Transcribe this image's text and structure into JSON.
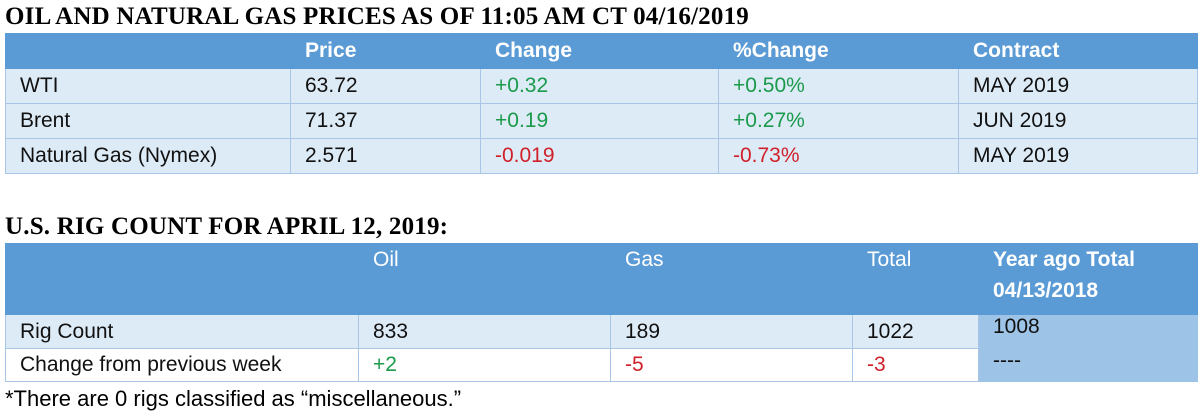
{
  "prices": {
    "title": "OIL AND NATURAL GAS PRICES AS OF 11:05 AM CT 04/16/2019",
    "headers": [
      "",
      "Price",
      "Change",
      "%Change",
      "Contract"
    ],
    "rows": [
      {
        "name": "WTI",
        "price": "63.72",
        "change": "+0.32",
        "pct": "+0.50%",
        "contract": "MAY 2019"
      },
      {
        "name": "Brent",
        "price": "71.37",
        "change": "+0.19",
        "pct": "+0.27%",
        "contract": "JUN 2019"
      },
      {
        "name": "Natural Gas (Nymex)",
        "price": "2.571",
        "change": "-0.019",
        "pct": "-0.73%",
        "contract": "MAY 2019"
      }
    ]
  },
  "rigs": {
    "title": "U.S. RIG COUNT FOR APRIL 12, 2019:",
    "headers": [
      "",
      "Oil",
      "Gas",
      "Total"
    ],
    "year_ago_header": "Year ago Total",
    "year_ago_date": "04/13/2018",
    "rows": [
      {
        "label": "Rig Count",
        "oil": "833",
        "gas": "189",
        "total": "1022",
        "year_ago": "1008"
      },
      {
        "label": "Change from previous week",
        "oil": "+2",
        "gas": "-5",
        "total": "-3",
        "year_ago": "----"
      }
    ],
    "footnote": "*There are 0 rigs classified as “miscellaneous.”"
  },
  "colors": {
    "header": "#5b9bd5",
    "row": "#ddebf7",
    "year_ago": "#9dc3e6",
    "positive": "#1a9a4a",
    "negative": "#d0202a"
  }
}
